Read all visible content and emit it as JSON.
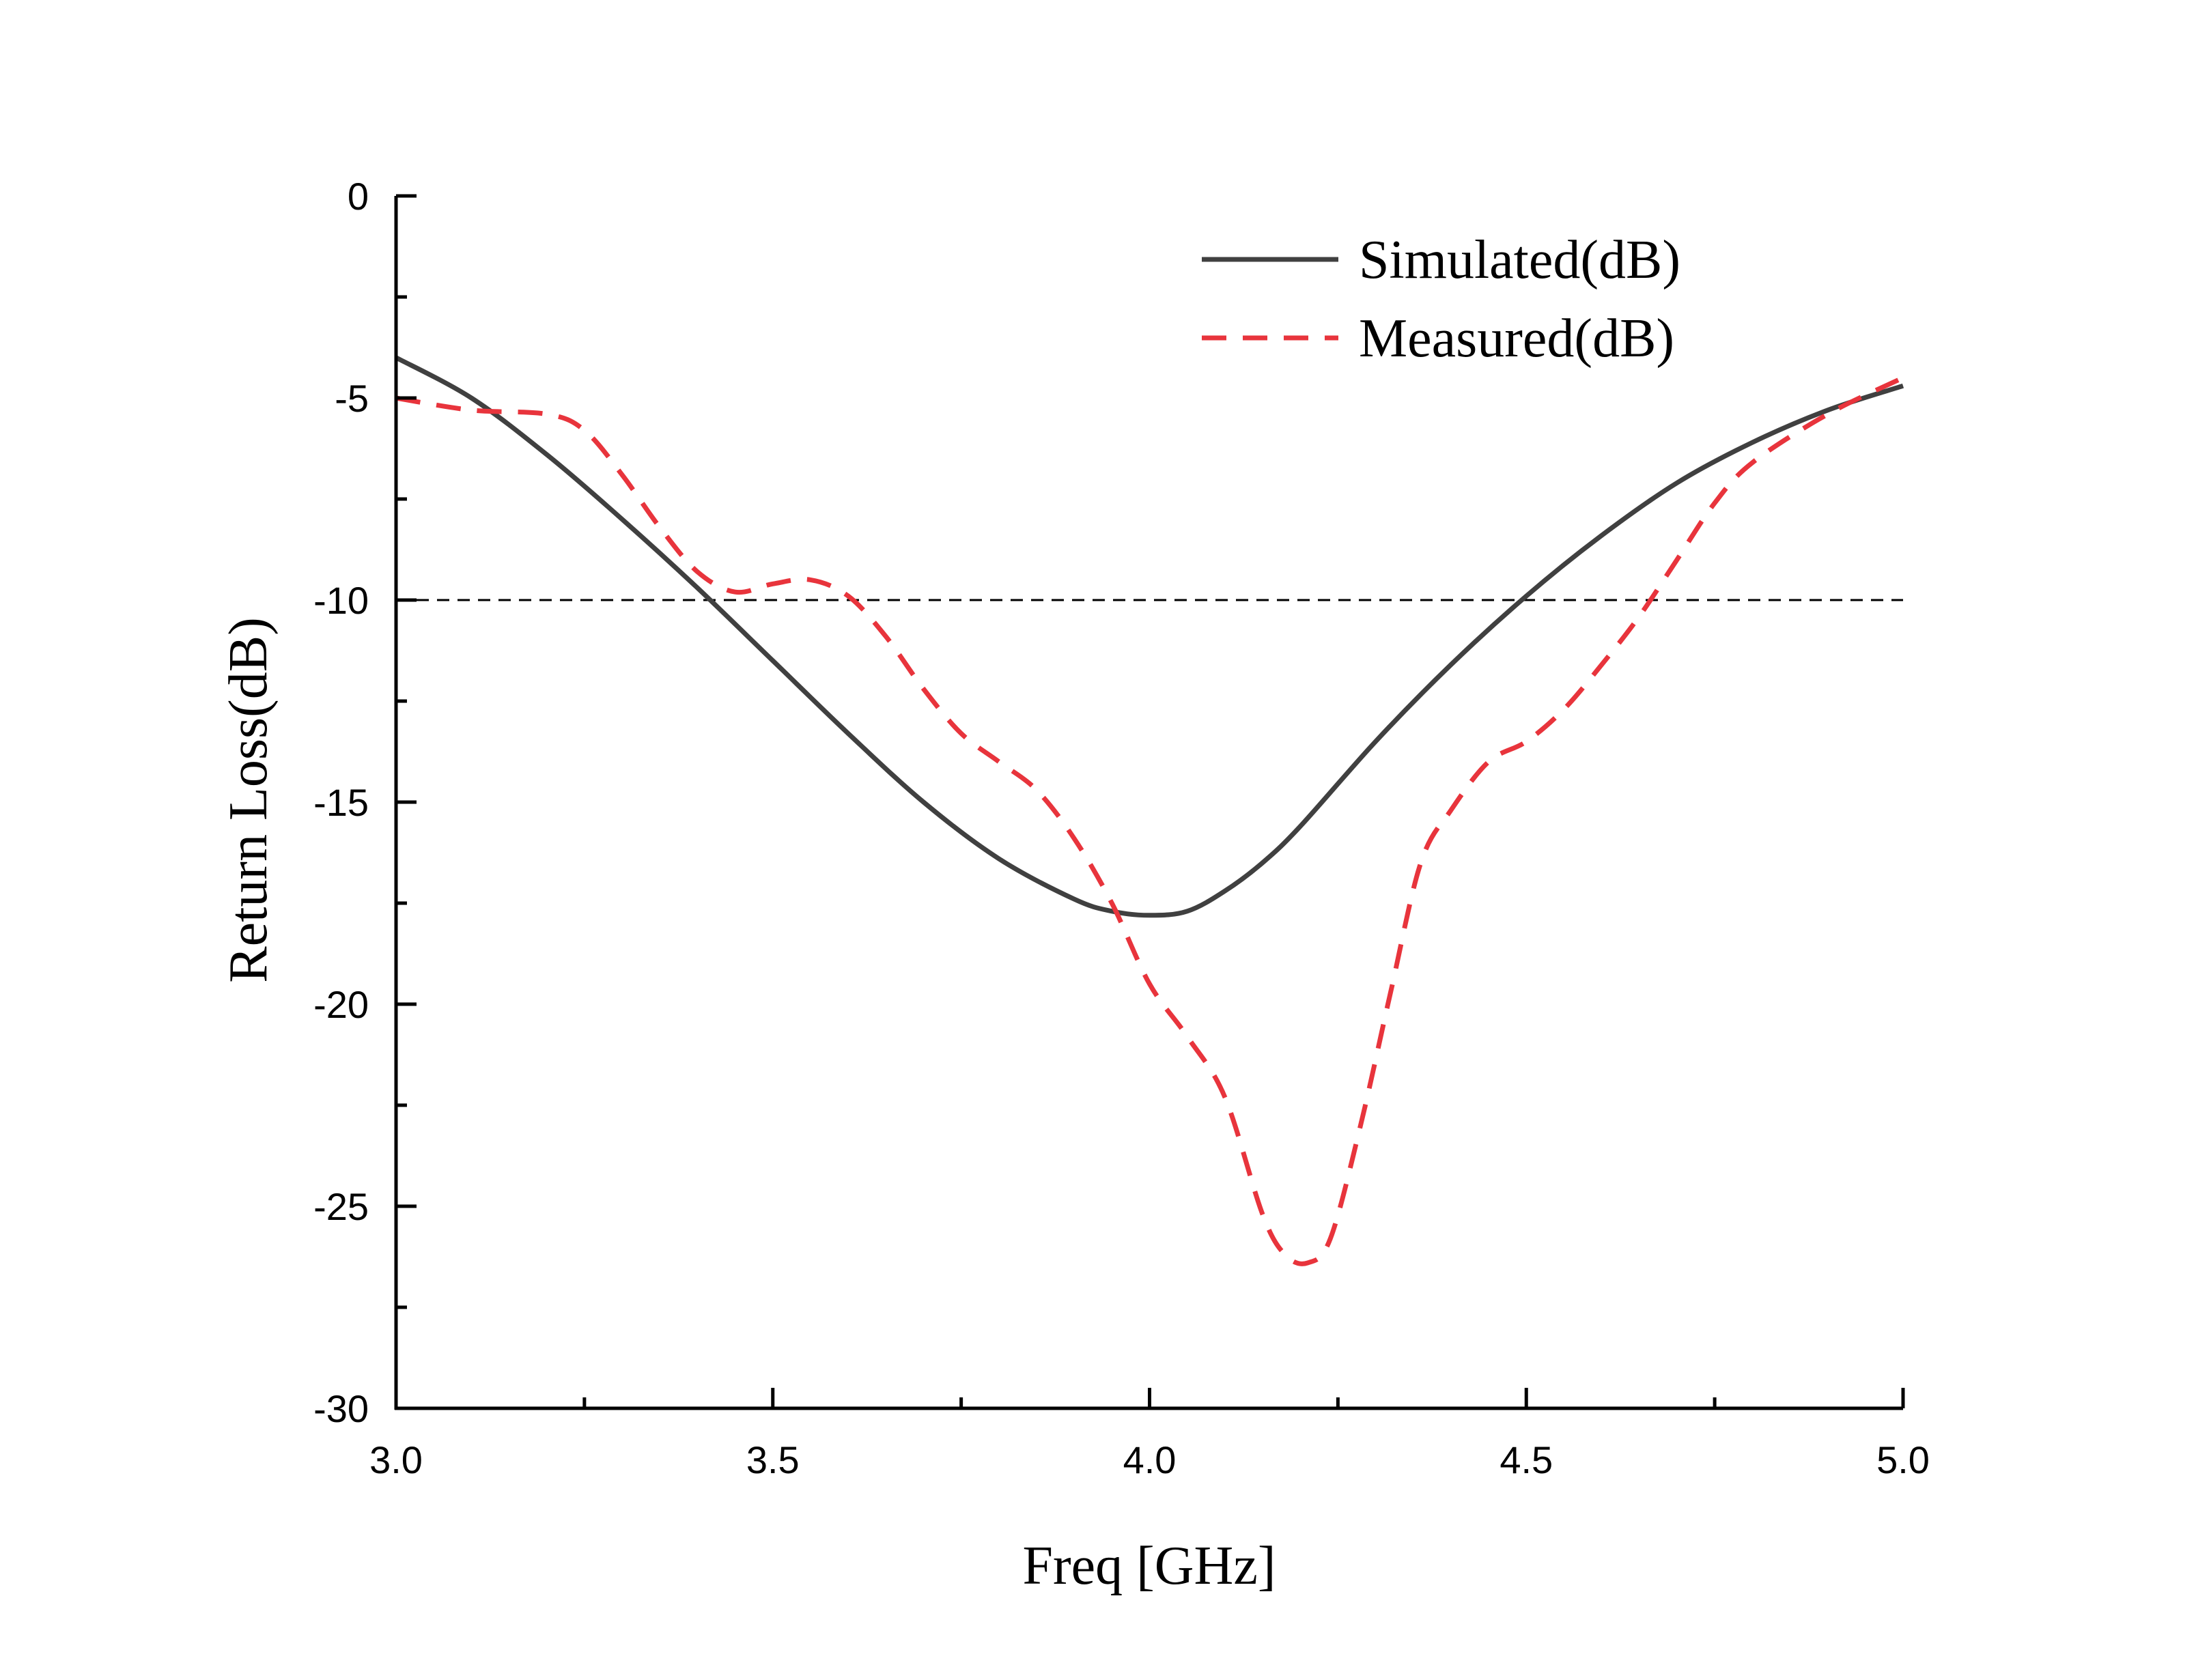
{
  "chart_data": {
    "type": "line",
    "xlabel": "Freq [GHz]",
    "ylabel": "Return Loss(dB)",
    "xlim": [
      3.0,
      5.0
    ],
    "ylim": [
      -30,
      0
    ],
    "xticks": [
      3.0,
      3.5,
      4.0,
      4.5,
      5.0
    ],
    "xtick_labels": [
      "3.0",
      "3.5",
      "4.0",
      "4.5",
      "5.0"
    ],
    "yticks": [
      0,
      -5,
      -10,
      -15,
      -20,
      -25,
      -30
    ],
    "ytick_labels": [
      "0",
      "-5",
      "-10",
      "-15",
      "-20",
      "-25",
      "-30"
    ],
    "grid": false,
    "legend_position": "top-right",
    "reference_line": {
      "y": -10,
      "style": "dashed",
      "color": "#000000"
    },
    "series": [
      {
        "name": "Simulated(dB)",
        "color": "#404040",
        "style": "solid",
        "x": [
          3.0,
          3.1,
          3.2,
          3.3,
          3.4,
          3.5,
          3.6,
          3.7,
          3.8,
          3.9,
          3.95,
          4.0,
          4.05,
          4.1,
          4.15,
          4.2,
          4.3,
          4.4,
          4.5,
          4.6,
          4.7,
          4.8,
          4.9,
          5.0
        ],
        "y": [
          -4.0,
          -5.0,
          -6.4,
          -8.0,
          -9.7,
          -11.5,
          -13.3,
          -15.0,
          -16.4,
          -17.4,
          -17.7,
          -17.8,
          -17.7,
          -17.2,
          -16.5,
          -15.6,
          -13.5,
          -11.6,
          -9.9,
          -8.4,
          -7.1,
          -6.1,
          -5.3,
          -4.7
        ]
      },
      {
        "name": "Measured(dB)",
        "color": "#e8343c",
        "style": "dashed",
        "x": [
          3.0,
          3.1,
          3.2,
          3.25,
          3.3,
          3.35,
          3.4,
          3.45,
          3.5,
          3.55,
          3.6,
          3.65,
          3.7,
          3.75,
          3.8,
          3.85,
          3.9,
          3.95,
          4.0,
          4.05,
          4.1,
          4.15,
          4.18,
          4.21,
          4.24,
          4.28,
          4.32,
          4.36,
          4.4,
          4.45,
          4.5,
          4.55,
          4.6,
          4.65,
          4.7,
          4.75,
          4.8,
          4.9,
          5.0
        ],
        "y": [
          -5.0,
          -5.3,
          -5.4,
          -5.8,
          -6.9,
          -8.2,
          -9.3,
          -9.8,
          -9.6,
          -9.5,
          -9.9,
          -10.9,
          -12.2,
          -13.3,
          -14.0,
          -14.7,
          -15.9,
          -17.5,
          -19.5,
          -20.8,
          -22.3,
          -25.2,
          -26.2,
          -26.4,
          -25.8,
          -23.0,
          -19.7,
          -16.5,
          -15.2,
          -14.0,
          -13.5,
          -12.7,
          -11.6,
          -10.4,
          -9.0,
          -7.6,
          -6.6,
          -5.4,
          -4.5
        ]
      }
    ]
  }
}
